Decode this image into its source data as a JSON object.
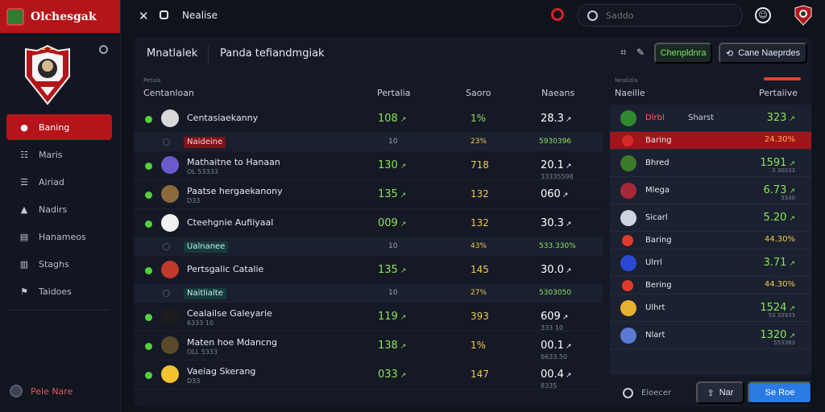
{
  "app": {
    "brand": "Olchesgak"
  },
  "sidebar": {
    "items": [
      {
        "label": "Baning",
        "icon": "record-icon",
        "glyph": "●",
        "active": true
      },
      {
        "label": "Maris",
        "icon": "users-icon",
        "glyph": "☷",
        "active": false
      },
      {
        "label": "Airiad",
        "icon": "list-icon",
        "glyph": "☰",
        "active": false
      },
      {
        "label": "Nadirs",
        "icon": "warning-icon",
        "glyph": "▲",
        "active": false
      },
      {
        "label": "Hanameos",
        "icon": "document-icon",
        "glyph": "▤",
        "active": false
      },
      {
        "label": "Staghs",
        "icon": "chart-icon",
        "glyph": "▥",
        "active": false
      },
      {
        "label": "Taidoes",
        "icon": "flag-icon",
        "glyph": "⚑",
        "active": false
      }
    ],
    "footer": "Pele Nare"
  },
  "topbar": {
    "title": "Nealise",
    "search_placeholder": "Saddo"
  },
  "main": {
    "title": "Mnatlalek",
    "subtitle": "Panda tefiandmgiak",
    "btn_green": "Chenpldnra",
    "btn_dark": "Cane Naeprdes",
    "table": {
      "small_head": "Petala",
      "headers": {
        "player": "Centanloan",
        "points": "Pertalia",
        "score": "Saoro",
        "margin": "Naeans"
      },
      "rows": [
        {
          "type": "big",
          "name": "Centasiaekanny",
          "sub": "",
          "points": "108",
          "score": "1%",
          "score_color": "green",
          "margin": "28.3",
          "margin_sub": "",
          "avatar": "#d9d9d9"
        },
        {
          "type": "small",
          "tag": "Naideine",
          "tag_style": "red",
          "points": "10",
          "score": "23%",
          "margin": "5930396"
        },
        {
          "type": "big",
          "name": "Mathaitne to Hanaan",
          "sub": "OL 53333",
          "points": "130",
          "score": "718",
          "score_color": "yellow",
          "margin": "20.1",
          "margin_sub": "33335598",
          "avatar": "#6a5acd"
        },
        {
          "type": "big",
          "name": "Paatse hergaekanony",
          "sub": "D33",
          "points": "135",
          "score": "132",
          "score_color": "yellow",
          "margin": "060",
          "margin_sub": "",
          "avatar": "#8a6a3a"
        },
        {
          "type": "big",
          "name": "Cteehgnie Aufiiyaal",
          "sub": "",
          "points": "009",
          "score": "132",
          "score_color": "yellow",
          "margin": "30.3",
          "margin_sub": "",
          "avatar": "#f0f0f0"
        },
        {
          "type": "small",
          "tag": "Ualnanee",
          "tag_style": "teal",
          "points": "10",
          "score": "43%",
          "margin": "533.330%"
        },
        {
          "type": "big",
          "name": "Pertsgalic Catalie",
          "sub": "",
          "points": "135",
          "score": "145",
          "score_color": "yellow",
          "margin": "30.0",
          "margin_sub": "",
          "avatar": "#c23a2a"
        },
        {
          "type": "small",
          "tag": "Naitlialte",
          "tag_style": "teal",
          "points": "10",
          "score": "27%",
          "margin": "5303050"
        },
        {
          "type": "big",
          "name": "Cealailse Galeyarie",
          "sub": "6333 10",
          "points": "119",
          "score": "393",
          "score_color": "yellow",
          "margin": "609",
          "margin_sub": "333 10",
          "avatar": "#1c1c1c"
        },
        {
          "type": "big",
          "name": "Maten hoe Mdancng",
          "sub": "OLL 5333",
          "points": "138",
          "score": "1%",
          "score_color": "yellow",
          "margin": "00.1",
          "margin_sub": "6633.50",
          "avatar": "#5a4a2a"
        },
        {
          "type": "big",
          "name": "Vaeiag Skerang",
          "sub": "D33",
          "points": "033",
          "score": "147",
          "score_color": "yellow",
          "margin": "00.4",
          "margin_sub": "8335",
          "avatar": "#f2c230"
        }
      ]
    }
  },
  "right_panel": {
    "small_head": "Nealidia",
    "headers": {
      "team": "Naeille",
      "pts": "Pertaiive"
    },
    "rows": [
      {
        "type": "big",
        "name": "Dlrbl",
        "name_style": "red",
        "sub": "Sharst",
        "value": "323",
        "value_sub": "",
        "avatar": "#2f8a2f"
      },
      {
        "type": "small",
        "name": "Baring",
        "value": "24.30%",
        "highlight": true,
        "avatar": "#d42a2a"
      },
      {
        "type": "big",
        "name": "Bhred",
        "value": "1591",
        "value_sub": "3 30033",
        "avatar": "#3c7a2a"
      },
      {
        "type": "big",
        "name": "Mlega",
        "value": "6.73",
        "value_sub": "3330",
        "avatar": "#a8283a"
      },
      {
        "type": "big",
        "name": "Sicarl",
        "value": "5.20",
        "value_sub": "",
        "avatar": "#cfd5e0"
      },
      {
        "type": "small",
        "name": "Baring",
        "value": "44.30%",
        "avatar": "#e03a2a"
      },
      {
        "type": "big",
        "name": "Ulrrl",
        "value": "3.71",
        "value_sub": "",
        "avatar": "#2a4ad4"
      },
      {
        "type": "small",
        "name": "Bering",
        "value": "44.30%",
        "avatar": "#e03a2a"
      },
      {
        "type": "big",
        "name": "Ulhrt",
        "value": "1524",
        "value_sub": "53 33933",
        "avatar": "#e6b030"
      },
      {
        "type": "big",
        "name": "Nlart",
        "value": "1320",
        "value_sub": "553383",
        "avatar": "#5a7ad4"
      }
    ],
    "footer_label": "Eloecer",
    "btn_gray": "Nar",
    "btn_blue": "Se Roe"
  }
}
